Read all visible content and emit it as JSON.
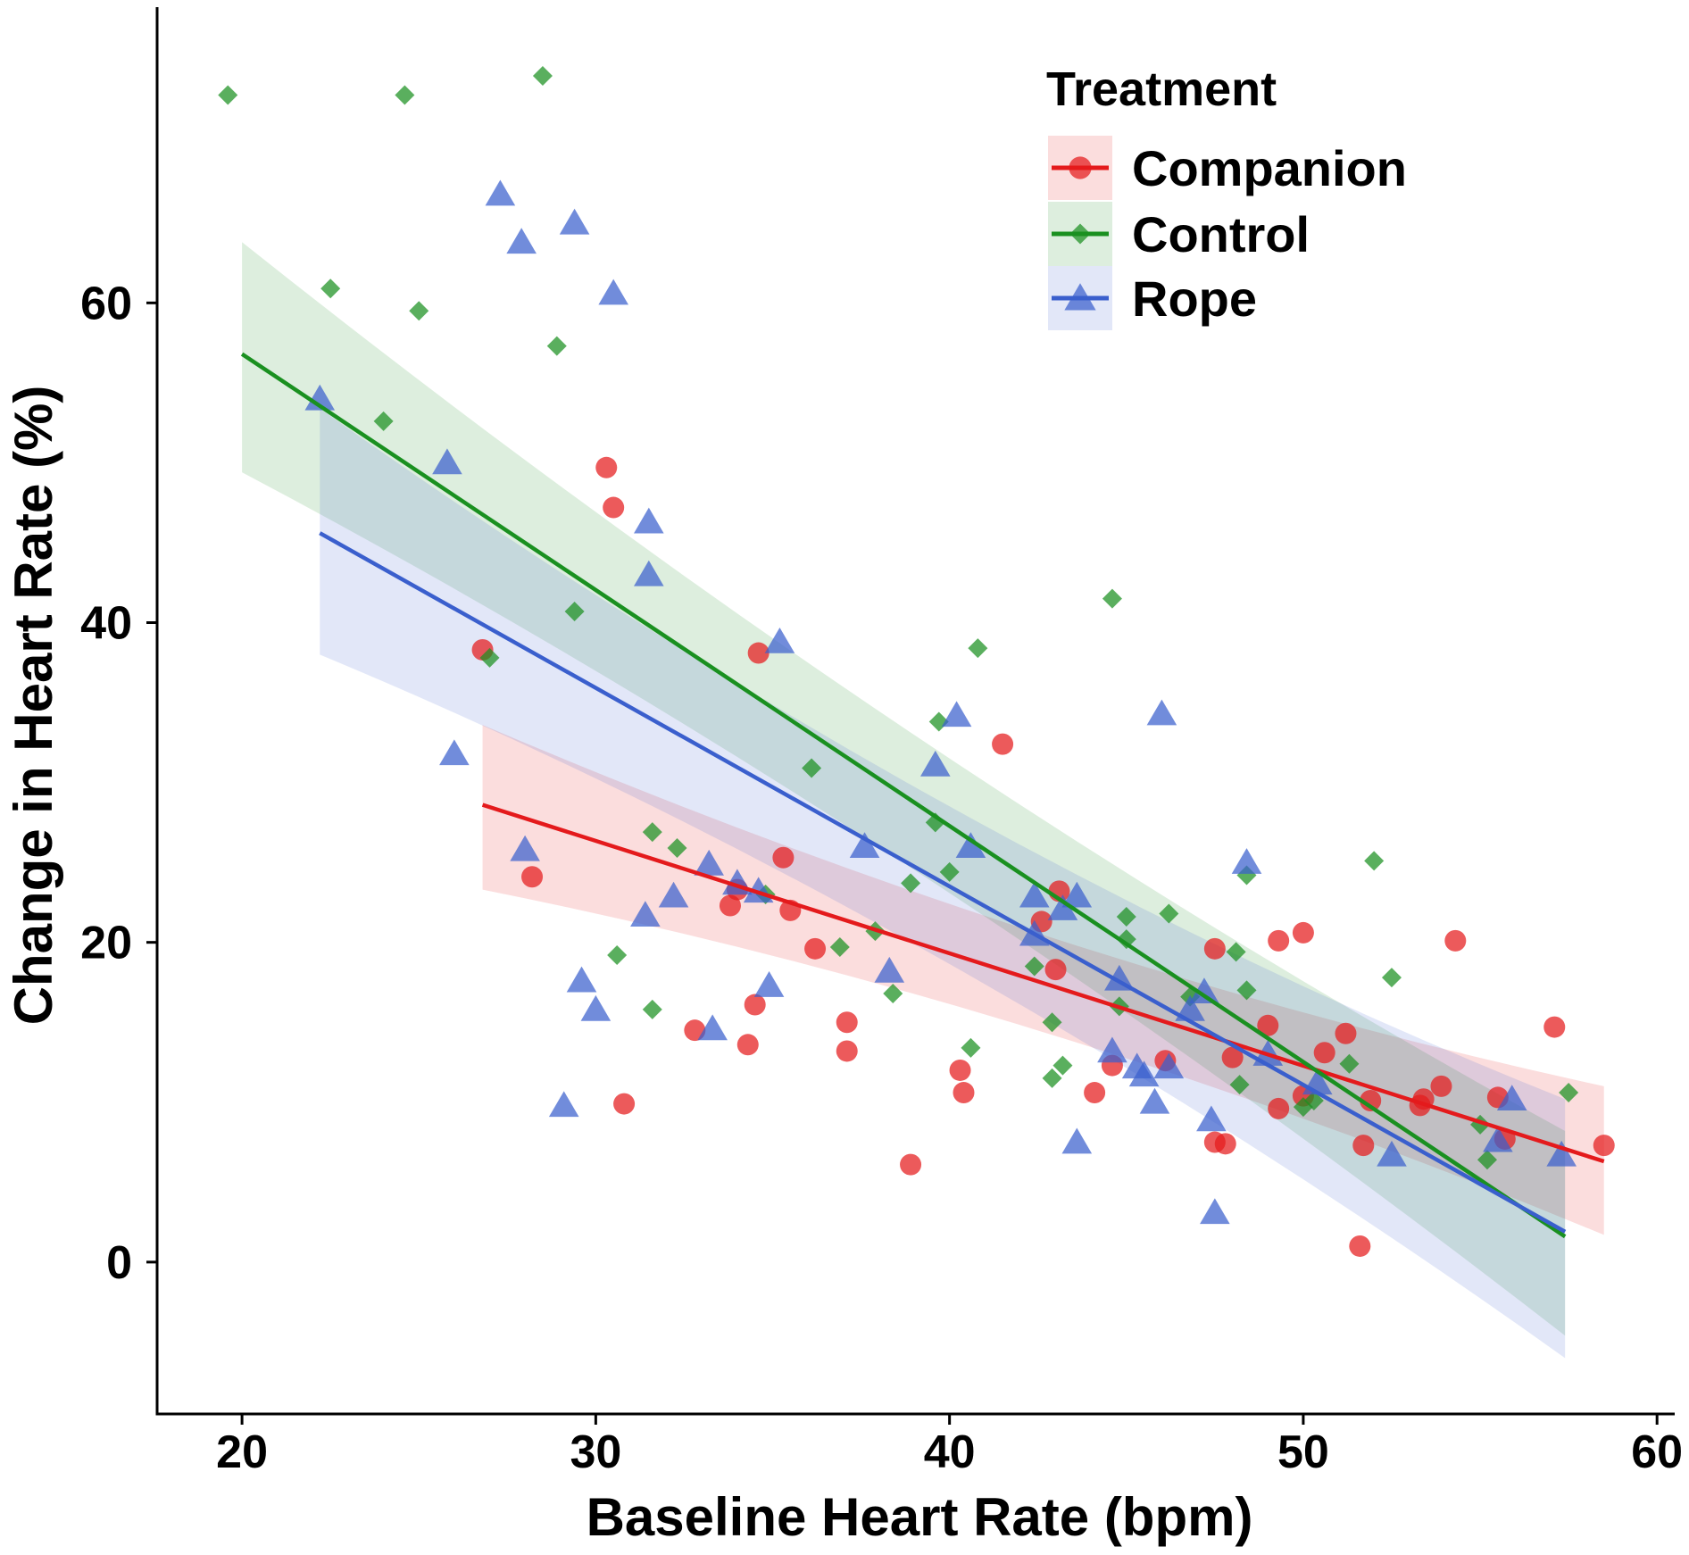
{
  "chart_data": {
    "type": "scatter",
    "xlabel": "Baseline Heart Rate (bpm)",
    "ylabel": "Change in Heart Rate (%)",
    "xlim": [
      17.6,
      60.5
    ],
    "ylim": [
      -9.5,
      78.5
    ],
    "xticks": [
      20,
      30,
      40,
      50,
      60
    ],
    "yticks": [
      0,
      20,
      40,
      60
    ],
    "xtick_labels": [
      "20",
      "30",
      "40",
      "50",
      "60"
    ],
    "ytick_labels": [
      "0",
      "20",
      "40",
      "60"
    ],
    "grid": false,
    "legend": {
      "title": "Treatment",
      "position": "top-right",
      "items": [
        "Companion",
        "Control",
        "Rope"
      ]
    },
    "series": [
      {
        "name": "Companion",
        "color": "#e41a1c",
        "marker": "circle",
        "fit": {
          "x": [
            26.8,
            58.5
          ],
          "y": [
            28.6,
            6.3
          ]
        },
        "ci": {
          "lower": [
            23.3,
            1.7
          ],
          "upper": [
            33.6,
            11.0
          ]
        },
        "points": [
          [
            26.8,
            38.3
          ],
          [
            28.2,
            24.1
          ],
          [
            30.3,
            49.7
          ],
          [
            30.5,
            47.2
          ],
          [
            30.8,
            9.9
          ],
          [
            32.8,
            14.5
          ],
          [
            33.8,
            22.3
          ],
          [
            34.0,
            23.3
          ],
          [
            34.3,
            13.6
          ],
          [
            34.5,
            16.1
          ],
          [
            34.6,
            38.1
          ],
          [
            35.3,
            25.3
          ],
          [
            35.5,
            22.0
          ],
          [
            36.2,
            19.6
          ],
          [
            37.1,
            15.0
          ],
          [
            37.1,
            13.2
          ],
          [
            38.9,
            6.1
          ],
          [
            40.3,
            12.0
          ],
          [
            40.4,
            10.6
          ],
          [
            41.5,
            32.4
          ],
          [
            42.6,
            21.3
          ],
          [
            43.0,
            18.3
          ],
          [
            43.1,
            23.2
          ],
          [
            44.1,
            10.6
          ],
          [
            44.6,
            12.3
          ],
          [
            46.1,
            12.6
          ],
          [
            47.5,
            19.6
          ],
          [
            47.5,
            7.5
          ],
          [
            47.8,
            7.4
          ],
          [
            48.0,
            12.8
          ],
          [
            49.0,
            14.8
          ],
          [
            49.3,
            20.1
          ],
          [
            49.3,
            9.6
          ],
          [
            50.0,
            20.6
          ],
          [
            50.0,
            10.4
          ],
          [
            50.6,
            13.1
          ],
          [
            51.2,
            14.3
          ],
          [
            51.6,
            1.0
          ],
          [
            51.7,
            7.3
          ],
          [
            51.9,
            10.1
          ],
          [
            53.3,
            9.8
          ],
          [
            53.4,
            10.2
          ],
          [
            53.9,
            11.0
          ],
          [
            54.3,
            20.1
          ],
          [
            55.5,
            10.3
          ],
          [
            55.7,
            7.7
          ],
          [
            57.1,
            14.7
          ],
          [
            58.5,
            7.3
          ]
        ]
      },
      {
        "name": "Control",
        "color": "#1a9020",
        "marker": "diamond",
        "fit": {
          "x": [
            20.0,
            57.4
          ],
          "y": [
            56.8,
            1.6
          ]
        },
        "ci": {
          "lower": [
            49.4,
            -4.6
          ],
          "upper": [
            63.8,
            8.2
          ]
        },
        "points": [
          [
            19.6,
            73.0
          ],
          [
            22.5,
            60.9
          ],
          [
            24.0,
            52.6
          ],
          [
            24.6,
            73.0
          ],
          [
            25.0,
            59.5
          ],
          [
            27.0,
            37.8
          ],
          [
            28.5,
            74.2
          ],
          [
            28.9,
            57.3
          ],
          [
            29.4,
            40.7
          ],
          [
            30.6,
            19.2
          ],
          [
            31.6,
            26.9
          ],
          [
            31.6,
            15.8
          ],
          [
            32.3,
            25.9
          ],
          [
            34.8,
            23.0
          ],
          [
            36.1,
            30.9
          ],
          [
            36.9,
            19.7
          ],
          [
            37.9,
            20.7
          ],
          [
            38.4,
            16.8
          ],
          [
            38.9,
            23.7
          ],
          [
            39.6,
            27.5
          ],
          [
            39.7,
            33.8
          ],
          [
            40.0,
            24.4
          ],
          [
            40.6,
            13.4
          ],
          [
            40.8,
            38.4
          ],
          [
            42.4,
            18.5
          ],
          [
            42.9,
            15.0
          ],
          [
            42.9,
            11.5
          ],
          [
            43.2,
            12.3
          ],
          [
            44.6,
            41.5
          ],
          [
            44.8,
            16.0
          ],
          [
            45.0,
            21.6
          ],
          [
            45.0,
            20.2
          ],
          [
            46.2,
            21.8
          ],
          [
            46.8,
            16.6
          ],
          [
            48.1,
            19.4
          ],
          [
            48.2,
            11.1
          ],
          [
            48.4,
            17.0
          ],
          [
            48.4,
            24.2
          ],
          [
            50.0,
            9.7
          ],
          [
            50.3,
            10.1
          ],
          [
            51.3,
            12.4
          ],
          [
            52.0,
            25.1
          ],
          [
            52.5,
            17.8
          ],
          [
            55.0,
            8.6
          ],
          [
            55.2,
            6.4
          ],
          [
            57.5,
            10.6
          ]
        ]
      },
      {
        "name": "Rope",
        "color": "#3a5fcd",
        "marker": "triangle",
        "fit": {
          "x": [
            22.2,
            57.4
          ],
          "y": [
            45.6,
            1.9
          ]
        },
        "ci": {
          "lower": [
            38.0,
            -6.0
          ],
          "upper": [
            53.4,
            10.2
          ]
        },
        "points": [
          [
            22.2,
            54.0
          ],
          [
            25.8,
            50.0
          ],
          [
            26.0,
            31.8
          ],
          [
            27.3,
            66.8
          ],
          [
            27.9,
            63.8
          ],
          [
            28.0,
            25.8
          ],
          [
            29.1,
            9.8
          ],
          [
            29.4,
            65.0
          ],
          [
            29.6,
            17.6
          ],
          [
            30.0,
            15.8
          ],
          [
            30.5,
            60.6
          ],
          [
            31.4,
            21.7
          ],
          [
            31.5,
            46.3
          ],
          [
            31.5,
            43.0
          ],
          [
            32.2,
            22.9
          ],
          [
            33.2,
            24.9
          ],
          [
            33.3,
            14.6
          ],
          [
            34.0,
            23.7
          ],
          [
            34.6,
            23.2
          ],
          [
            34.9,
            17.3
          ],
          [
            35.2,
            38.8
          ],
          [
            37.6,
            26.0
          ],
          [
            38.3,
            18.2
          ],
          [
            39.6,
            31.1
          ],
          [
            40.2,
            34.2
          ],
          [
            40.6,
            26.0
          ],
          [
            42.4,
            20.5
          ],
          [
            42.4,
            22.9
          ],
          [
            43.2,
            22.1
          ],
          [
            43.6,
            22.9
          ],
          [
            43.6,
            7.5
          ],
          [
            44.6,
            13.2
          ],
          [
            44.8,
            17.7
          ],
          [
            45.3,
            12.2
          ],
          [
            45.5,
            11.7
          ],
          [
            45.8,
            10.0
          ],
          [
            46.0,
            34.3
          ],
          [
            46.2,
            12.2
          ],
          [
            46.8,
            15.8
          ],
          [
            47.2,
            16.9
          ],
          [
            47.4,
            8.9
          ],
          [
            47.5,
            3.1
          ],
          [
            48.4,
            25.0
          ],
          [
            49.0,
            13.0
          ],
          [
            50.4,
            11.2
          ],
          [
            52.5,
            6.7
          ],
          [
            55.5,
            7.6
          ],
          [
            55.9,
            10.2
          ],
          [
            57.3,
            6.7
          ]
        ]
      }
    ]
  }
}
